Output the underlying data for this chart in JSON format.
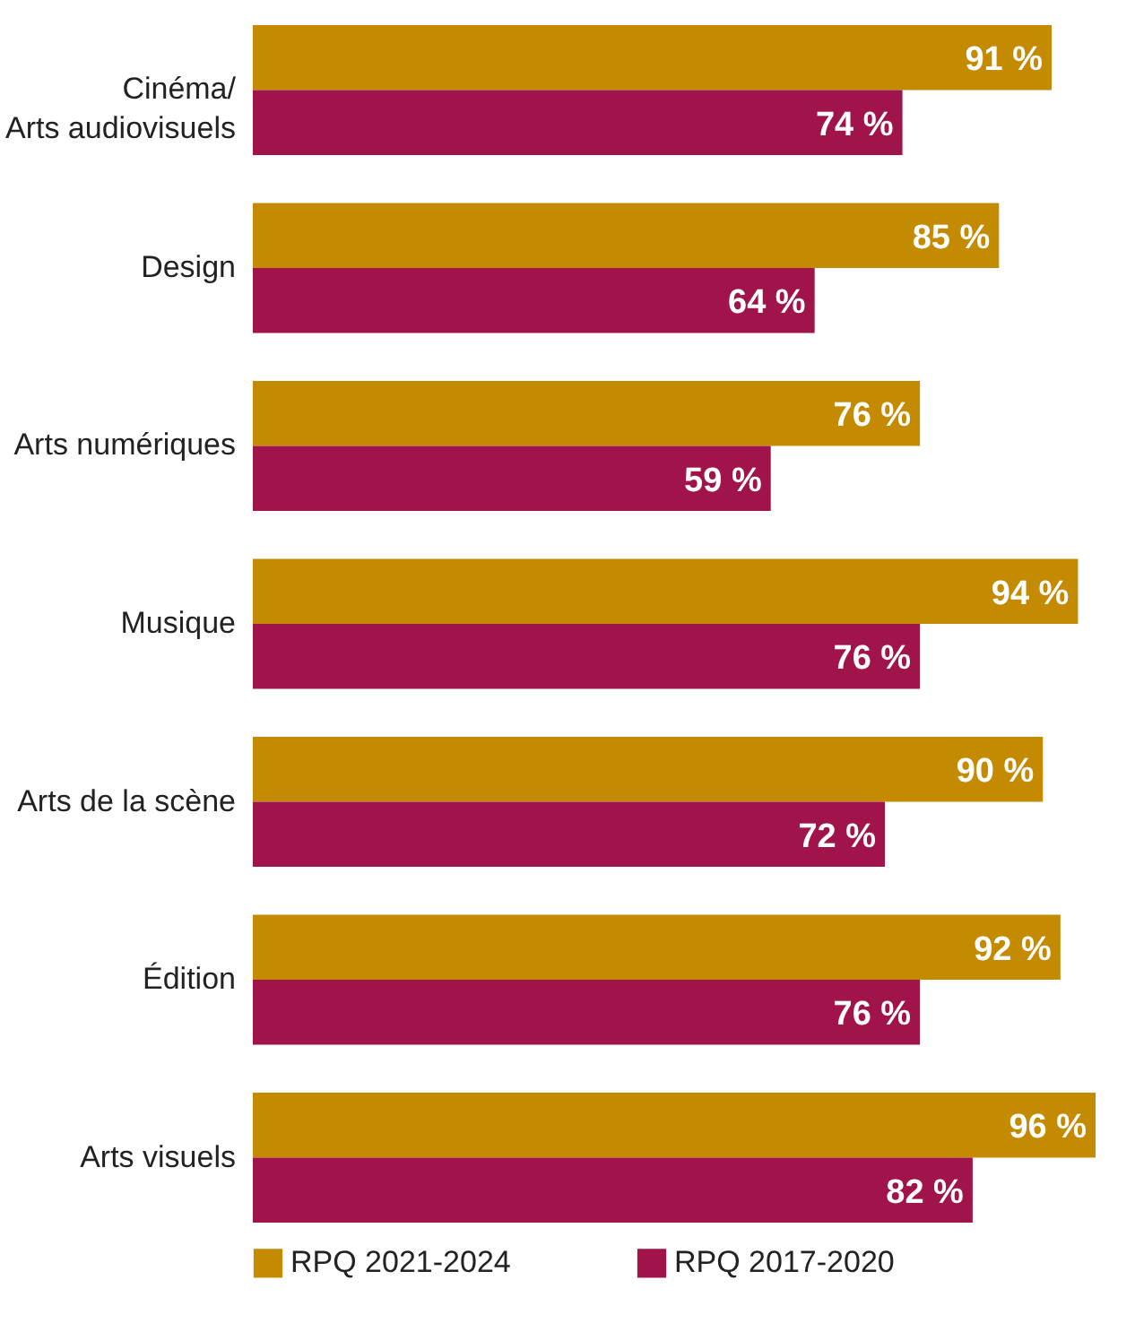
{
  "chart_data": {
    "type": "bar",
    "orientation": "horizontal",
    "categories": [
      "Cinéma/\nArts audiovisuels",
      "Design",
      "Arts numériques",
      "Musique",
      "Arts de la scène",
      "Édition",
      "Arts visuels"
    ],
    "series": [
      {
        "name": "RPQ 2021-2024",
        "color": "#c48a00",
        "values": [
          91,
          85,
          76,
          94,
          90,
          92,
          96
        ],
        "value_labels": [
          "91 %",
          "85 %",
          "76 %",
          "94 %",
          "90 %",
          "92 %",
          "96 %"
        ]
      },
      {
        "name": "RPQ 2017-2020",
        "color": "#a0134b",
        "values": [
          74,
          64,
          59,
          76,
          72,
          76,
          82
        ],
        "value_labels": [
          "74 %",
          "64 %",
          "59 %",
          "76 %",
          "72 %",
          "76 %",
          "82 %"
        ]
      }
    ],
    "xlim": [
      0,
      96
    ],
    "legend": "bottom",
    "tick_labels": "y"
  }
}
